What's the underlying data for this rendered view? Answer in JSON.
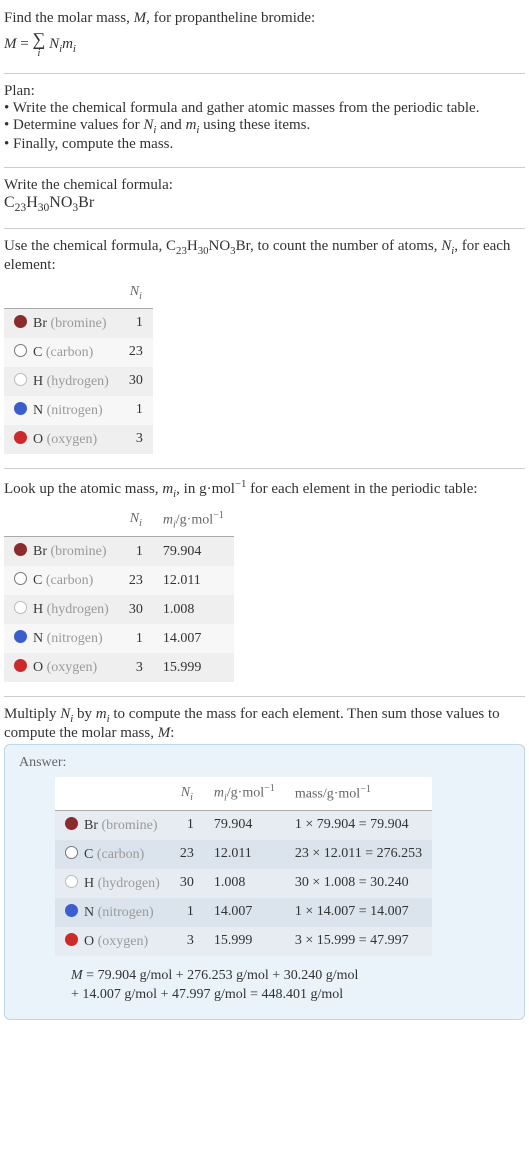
{
  "intro": {
    "line1_a": "Find the molar mass, ",
    "line1_M": "M",
    "line1_b": ", for propantheline bromide:",
    "eq_lhs": "M",
    "eq_rhs_Ni": "N",
    "eq_rhs_mi": "m",
    "sum_sub": "i"
  },
  "plan": {
    "title": "Plan:",
    "b1": "• Write the chemical formula and gather atomic masses from the periodic table.",
    "b2_a": "• Determine values for ",
    "b2_Ni": "N",
    "b2_Ni_sub": "i",
    "b2_mid": " and ",
    "b2_mi": "m",
    "b2_mi_sub": "i",
    "b2_b": " using these items.",
    "b3": "• Finally, compute the mass."
  },
  "write_formula": {
    "title": "Write the chemical formula:",
    "c": "C",
    "c_n": "23",
    "h": "H",
    "h_n": "30",
    "n": "N",
    "o": "O",
    "o_n": "3",
    "br": "Br"
  },
  "count": {
    "a": "Use the chemical formula, ",
    "b": ", to count the number of atoms, ",
    "Ni": "N",
    "Ni_sub": "i",
    "c": ", for each element:"
  },
  "lookup": {
    "a": "Look up the atomic mass, ",
    "mi": "m",
    "mi_sub": "i",
    "b": ", in g·mol",
    "exp": "−1",
    "c": " for each element in the periodic table:"
  },
  "multiply": {
    "a": "Multiply ",
    "Ni": "N",
    "Ni_sub": "i",
    "b": " by ",
    "mi": "m",
    "mi_sub": "i",
    "c": " to compute the mass for each element. Then sum those values to compute the molar mass, ",
    "M": "M",
    "d": ":"
  },
  "headers": {
    "Ni": "N",
    "Ni_sub": "i",
    "mi_gmol_a": "m",
    "mi_sub": "i",
    "mi_gmol_b": "/g·mol",
    "mi_exp": "−1",
    "mass_gmol_a": "mass/g·mol",
    "mass_exp": "−1"
  },
  "elements": [
    {
      "swatch": "#8b2b2b",
      "fill": true,
      "sym": "Br",
      "name": "(bromine)",
      "N": "1",
      "m": "79.904",
      "mass": "1 × 79.904 = 79.904"
    },
    {
      "swatch": "#ffffff",
      "fill": false,
      "sym": "C",
      "name": "(carbon)",
      "N": "23",
      "m": "12.011",
      "mass": "23 × 12.011 = 276.253",
      "border": "#777"
    },
    {
      "swatch": "#ffffff",
      "fill": false,
      "sym": "H",
      "name": "(hydrogen)",
      "N": "30",
      "m": "1.008",
      "mass": "30 × 1.008 = 30.240",
      "border": "#bbb"
    },
    {
      "swatch": "#3a5fcd",
      "fill": true,
      "sym": "N",
      "name": "(nitrogen)",
      "N": "1",
      "m": "14.007",
      "mass": "1 × 14.007 = 14.007"
    },
    {
      "swatch": "#cc2a2a",
      "fill": true,
      "sym": "O",
      "name": "(oxygen)",
      "N": "3",
      "m": "15.999",
      "mass": "3 × 15.999 = 47.997"
    }
  ],
  "answer": {
    "title": "Answer:",
    "line1": "M = 79.904 g/mol + 276.253 g/mol + 30.240 g/mol",
    "line2": "+ 14.007 g/mol + 47.997 g/mol = 448.401 g/mol"
  }
}
